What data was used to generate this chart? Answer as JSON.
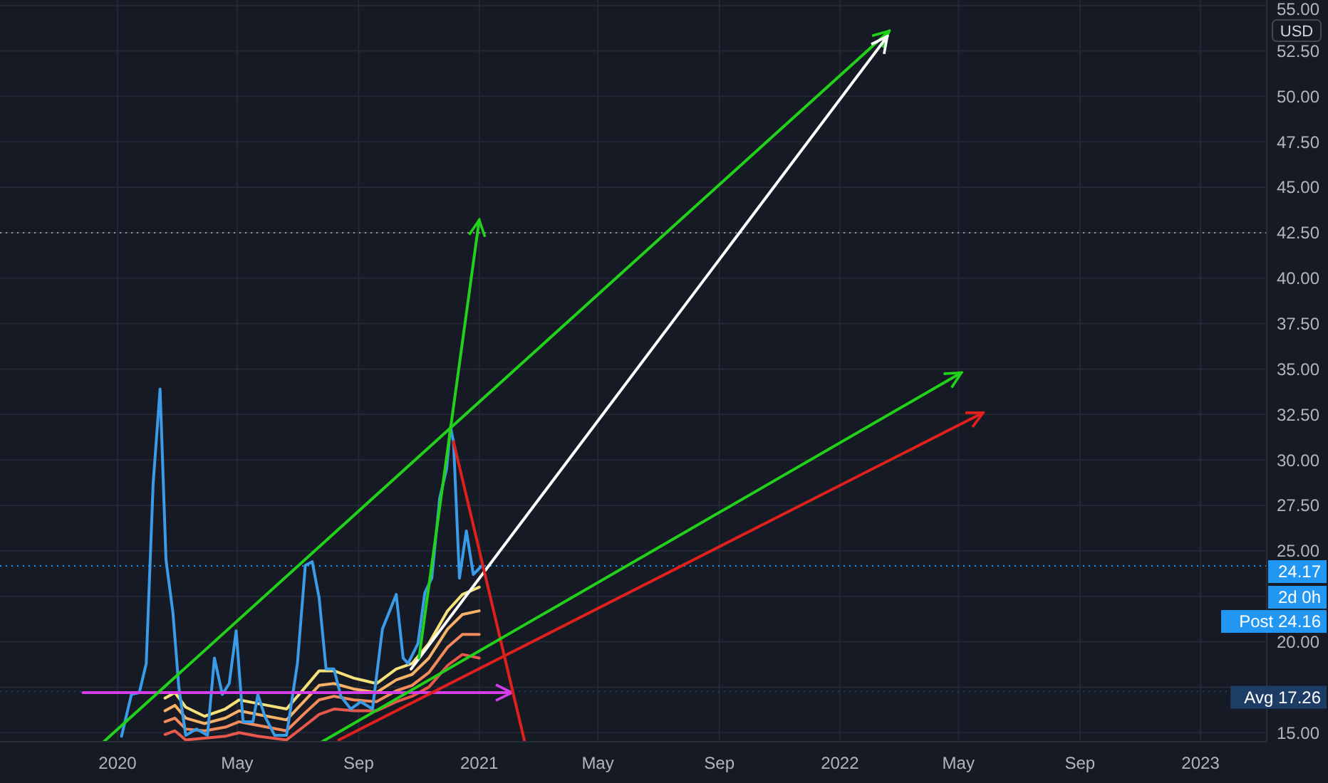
{
  "chart_data": {
    "type": "line",
    "ylabel": "USD",
    "xlim": [
      "2019-09-04",
      "2023-03-09"
    ],
    "xticks": [
      {
        "value": "2020-01-01",
        "label": "2020"
      },
      {
        "value": "2020-05-01",
        "label": "May"
      },
      {
        "value": "2020-09-01",
        "label": "Sep"
      },
      {
        "value": "2021-01-01",
        "label": "2021"
      },
      {
        "value": "2021-05-01",
        "label": "May"
      },
      {
        "value": "2021-09-01",
        "label": "Sep"
      },
      {
        "value": "2022-01-01",
        "label": "2022"
      },
      {
        "value": "2022-05-01",
        "label": "May"
      },
      {
        "value": "2022-09-01",
        "label": "Sep"
      },
      {
        "value": "2023-01-01",
        "label": "2023"
      }
    ],
    "ylim": [
      14.5,
      55.3
    ],
    "yticks": [
      {
        "value": 15,
        "label": "15.00"
      },
      {
        "value": 17.5,
        "label": null
      },
      {
        "value": 20,
        "label": "20.00"
      },
      {
        "value": 22.5,
        "label": null
      },
      {
        "value": 25,
        "label": "25.00"
      },
      {
        "value": 27.5,
        "label": "27.50"
      },
      {
        "value": 30,
        "label": "30.00"
      },
      {
        "value": 32.5,
        "label": "32.50"
      },
      {
        "value": 35,
        "label": "35.00"
      },
      {
        "value": 37.5,
        "label": "37.50"
      },
      {
        "value": 40,
        "label": "40.00"
      },
      {
        "value": 42.5,
        "label": "42.50"
      },
      {
        "value": 45,
        "label": "45.00"
      },
      {
        "value": 47.5,
        "label": "47.50"
      },
      {
        "value": 50,
        "label": "50.00"
      },
      {
        "value": 52.5,
        "label": "52.50"
      },
      {
        "value": 55,
        "label": "55.00"
      }
    ],
    "grid": true,
    "series": [
      {
        "color": "#f5e27a",
        "x": [
          "2020-02-18",
          "2020-02-28",
          "2020-03-10",
          "2020-03-29",
          "2020-04-19",
          "2020-05-03",
          "2020-05-22",
          "2020-06-20",
          "2020-07-09",
          "2020-07-23",
          "2020-08-07",
          "2020-08-27",
          "2020-09-19",
          "2020-10-09",
          "2020-10-25",
          "2020-11-11",
          "2020-11-30",
          "2020-12-15",
          "2021-01-01"
        ],
        "values": [
          16.9,
          17.2,
          16.4,
          15.9,
          16.3,
          16.8,
          16.6,
          16.3,
          17.5,
          18.4,
          18.4,
          18.0,
          17.7,
          18.5,
          18.8,
          19.9,
          21.7,
          22.6,
          23.0
        ]
      },
      {
        "color": "#f7b267",
        "x": [
          "2020-02-18",
          "2020-02-28",
          "2020-03-10",
          "2020-03-29",
          "2020-04-19",
          "2020-05-03",
          "2020-05-22",
          "2020-06-20",
          "2020-07-09",
          "2020-07-23",
          "2020-08-07",
          "2020-08-27",
          "2020-09-19",
          "2020-10-09",
          "2020-10-25",
          "2020-11-11",
          "2020-11-30",
          "2020-12-15",
          "2021-01-01"
        ],
        "values": [
          16.2,
          16.5,
          15.8,
          15.5,
          15.8,
          16.2,
          16.0,
          15.7,
          16.8,
          17.6,
          17.7,
          17.4,
          17.2,
          17.9,
          18.2,
          19.1,
          20.7,
          21.5,
          21.7
        ]
      },
      {
        "color": "#f28a5c",
        "x": [
          "2020-02-18",
          "2020-02-28",
          "2020-03-10",
          "2020-03-29",
          "2020-04-19",
          "2020-05-03",
          "2020-05-22",
          "2020-06-20",
          "2020-07-09",
          "2020-07-23",
          "2020-08-07",
          "2020-08-27",
          "2020-09-19",
          "2020-10-09",
          "2020-10-25",
          "2020-11-11",
          "2020-11-30",
          "2020-12-15",
          "2021-01-01"
        ],
        "values": [
          15.6,
          15.8,
          15.2,
          15.1,
          15.3,
          15.6,
          15.4,
          15.1,
          16.1,
          16.8,
          17.0,
          16.8,
          16.7,
          17.3,
          17.6,
          18.3,
          19.7,
          20.4,
          20.4
        ]
      },
      {
        "color": "#e8584a",
        "x": [
          "2020-02-18",
          "2020-02-28",
          "2020-03-10",
          "2020-03-29",
          "2020-04-19",
          "2020-05-03",
          "2020-05-22",
          "2020-06-20",
          "2020-07-09",
          "2020-07-23",
          "2020-08-07",
          "2020-08-27",
          "2020-09-19",
          "2020-10-09",
          "2020-10-25",
          "2020-11-11",
          "2020-11-30",
          "2020-12-15",
          "2021-01-01"
        ],
        "values": [
          14.9,
          15.1,
          14.6,
          14.7,
          14.8,
          15.0,
          14.8,
          14.6,
          15.4,
          16.0,
          16.3,
          16.2,
          16.2,
          16.7,
          17.0,
          17.5,
          18.7,
          19.3,
          19.1
        ]
      },
      {
        "color": "#3a9be8",
        "x": [
          "2020-01-05",
          "2020-01-15",
          "2020-01-23",
          "2020-01-30",
          "2020-02-06",
          "2020-02-13",
          "2020-02-19",
          "2020-02-26",
          "2020-03-03",
          "2020-03-10",
          "2020-03-21",
          "2020-04-01",
          "2020-04-08",
          "2020-04-16",
          "2020-04-23",
          "2020-04-30",
          "2020-05-07",
          "2020-05-17",
          "2020-05-22",
          "2020-05-29",
          "2020-06-08",
          "2020-06-20",
          "2020-07-01",
          "2020-07-09",
          "2020-07-16",
          "2020-07-23",
          "2020-07-30",
          "2020-08-07",
          "2020-08-14",
          "2020-08-24",
          "2020-09-03",
          "2020-09-15",
          "2020-09-25",
          "2020-10-09",
          "2020-10-16",
          "2020-10-21",
          "2020-10-31",
          "2020-11-07",
          "2020-11-14",
          "2020-11-22",
          "2020-11-29",
          "2020-12-03",
          "2020-12-06",
          "2020-12-12",
          "2020-12-19",
          "2020-12-26",
          "2021-01-04"
        ],
        "values": [
          14.8,
          17.1,
          17.2,
          18.8,
          28.7,
          33.9,
          24.5,
          21.6,
          17.5,
          14.85,
          15.2,
          14.85,
          19.1,
          17.1,
          17.7,
          20.6,
          15.6,
          15.6,
          17.1,
          15.9,
          14.85,
          14.85,
          18.8,
          24.2,
          24.4,
          22.4,
          18.5,
          18.5,
          17.0,
          16.3,
          16.7,
          16.3,
          20.7,
          22.6,
          19.1,
          18.8,
          19.9,
          22.7,
          23.5,
          27.9,
          29.5,
          31.8,
          31.0,
          23.5,
          26.1,
          23.7,
          24.2
        ]
      },
      {
        "color": "#d43ee8",
        "x": [
          "2019-11-27",
          "2021-02-03"
        ],
        "values": [
          17.2,
          17.2
        ]
      },
      {
        "color": "#22d11a",
        "x": [
          "2019-12-18",
          "2022-02-20"
        ],
        "values": [
          14.5,
          53.6
        ]
      },
      {
        "color": "#ffffff",
        "x": [
          "2020-10-24",
          "2022-02-18"
        ],
        "values": [
          18.5,
          53.3
        ]
      },
      {
        "color": "#22d11a",
        "x": [
          "2020-11-01",
          "2021-01-01"
        ],
        "values": [
          19.1,
          43.2
        ]
      },
      {
        "color": "#e0201c",
        "x": [
          "2020-12-06",
          "2021-02-16"
        ],
        "values": [
          31.0,
          14.5
        ]
      },
      {
        "color": "#22d11a",
        "x": [
          "2020-07-26",
          "2022-05-04"
        ],
        "values": [
          14.5,
          34.8
        ]
      },
      {
        "color": "#e0201c",
        "x": [
          "2020-08-12",
          "2022-05-26"
        ],
        "values": [
          14.6,
          32.6
        ]
      }
    ],
    "ref_lines": [
      {
        "axis": "y",
        "value": 42.5,
        "label": null,
        "color": "#9598a1",
        "line_style": "dotted"
      },
      {
        "axis": "y",
        "value": 24.17,
        "label": "24.17",
        "color": "#2196f3",
        "line_style": "dotted"
      },
      {
        "axis": "y",
        "value": 17.26,
        "label": "Avg 17.26",
        "color": "#1e3d66",
        "line_style": "dotted"
      }
    ],
    "annotations": [
      "2d 0h",
      "Post 24.16"
    ]
  }
}
